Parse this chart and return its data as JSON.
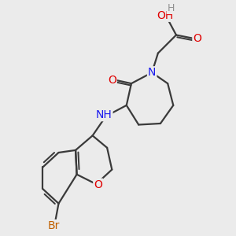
{
  "bg_color": "#ebebeb",
  "bond_color": "#3a3a3a",
  "bond_width": 1.6,
  "atom_colors": {
    "O": "#e00000",
    "N": "#1a1aee",
    "Br": "#c06000",
    "H": "#808080",
    "C": "#3a3a3a"
  },
  "font_size": 10,
  "font_size_br": 10
}
